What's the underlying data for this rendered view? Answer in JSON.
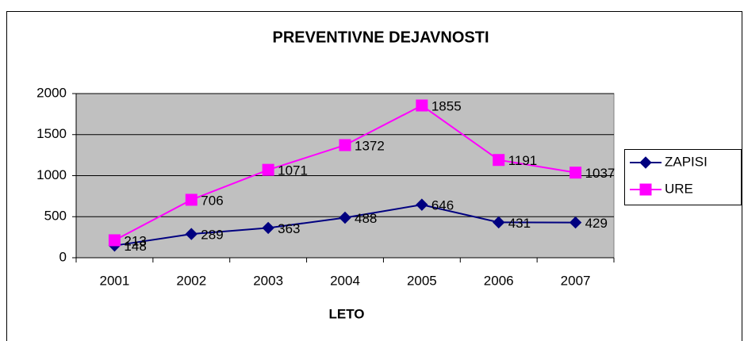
{
  "chart_data": {
    "type": "line",
    "title": "PREVENTIVNE DEJAVNOSTI",
    "x_label": "LETO",
    "categories": [
      "2001",
      "2002",
      "2003",
      "2004",
      "2005",
      "2006",
      "2007"
    ],
    "series": [
      {
        "name": "ZAPISI",
        "color": "#000080",
        "marker": "diamond",
        "values": [
          148,
          289,
          363,
          488,
          646,
          431,
          429
        ]
      },
      {
        "name": "URE",
        "color": "#ff00ff",
        "marker": "square",
        "values": [
          213,
          706,
          1071,
          1372,
          1855,
          1191,
          1037
        ]
      }
    ],
    "ylim": [
      0,
      2000
    ],
    "yticks": [
      0,
      500,
      1000,
      1500,
      2000
    ],
    "grid": true,
    "legend": "right"
  }
}
